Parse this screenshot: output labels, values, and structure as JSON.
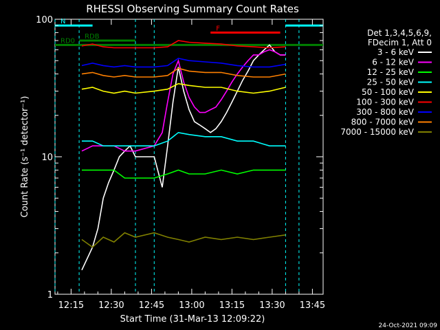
{
  "chart_data": {
    "type": "line",
    "title": "RHESSI Observing Summary Count Rates",
    "xlabel": "Start Time (31-Mar-13 12:09:22)",
    "ylabel": "Count Rate (s⁻¹ detector⁻¹)",
    "yscale": "log",
    "ylim": [
      1,
      100
    ],
    "y_ticks": [
      "1",
      "10",
      "100"
    ],
    "x_ticks": [
      "12:15",
      "12:30",
      "12:45",
      "13:00",
      "13:15",
      "13:30",
      "13:45"
    ],
    "x_range_minutes": [
      0,
      100
    ],
    "legend_header": [
      "Det 1,3,4,5,6,9,",
      "FDecim 1, Att 0"
    ],
    "legend_position": "right",
    "timestamp": "24-Oct-2021 09:09",
    "flags": [
      {
        "label": "N",
        "color": "#00ffff",
        "segments": [
          [
            0,
            14
          ],
          [
            86,
            100
          ]
        ],
        "level": 90
      },
      {
        "label": "F",
        "color": "#ff0000",
        "segments": [
          [
            58,
            84
          ]
        ],
        "level": 80
      },
      {
        "label": "RD0",
        "color": "#008000",
        "segments": [
          [
            0,
            100
          ]
        ],
        "level": 65
      },
      {
        "label": "RDB",
        "color": "#008000",
        "segments": [
          [
            9,
            30
          ]
        ],
        "level": 70
      }
    ],
    "gaps": [
      [
        0,
        9
      ],
      [
        30,
        37
      ],
      [
        86,
        91
      ]
    ],
    "series": [
      {
        "name": "3 - 6 keV",
        "color": "#ffffff",
        "points": [
          [
            10,
            1.5
          ],
          [
            14,
            2.2
          ],
          [
            16,
            3
          ],
          [
            18,
            5
          ],
          [
            20,
            6.5
          ],
          [
            22,
            8
          ],
          [
            24,
            10
          ],
          [
            26,
            11
          ],
          [
            28,
            12
          ],
          [
            30,
            10
          ],
          [
            37,
            10
          ],
          [
            40,
            6
          ],
          [
            42,
            12
          ],
          [
            44,
            25
          ],
          [
            46,
            45
          ],
          [
            48,
            30
          ],
          [
            50,
            22
          ],
          [
            52,
            18
          ],
          [
            54,
            17
          ],
          [
            56,
            16
          ],
          [
            58,
            15
          ],
          [
            60,
            16
          ],
          [
            62,
            18
          ],
          [
            64,
            21
          ],
          [
            66,
            25
          ],
          [
            68,
            30
          ],
          [
            70,
            36
          ],
          [
            72,
            42
          ],
          [
            74,
            50
          ],
          [
            76,
            55
          ],
          [
            78,
            60
          ],
          [
            80,
            65
          ],
          [
            82,
            58
          ],
          [
            84,
            55
          ],
          [
            86,
            55
          ]
        ]
      },
      {
        "name": "6 - 12 keV",
        "color": "#ff00ff",
        "points": [
          [
            10,
            11
          ],
          [
            14,
            12
          ],
          [
            18,
            12
          ],
          [
            22,
            12
          ],
          [
            26,
            11
          ],
          [
            30,
            11
          ],
          [
            37,
            12
          ],
          [
            40,
            15
          ],
          [
            42,
            25
          ],
          [
            44,
            40
          ],
          [
            46,
            50
          ],
          [
            48,
            35
          ],
          [
            50,
            27
          ],
          [
            52,
            23
          ],
          [
            54,
            21
          ],
          [
            56,
            21
          ],
          [
            58,
            22
          ],
          [
            60,
            23
          ],
          [
            62,
            26
          ],
          [
            64,
            30
          ],
          [
            66,
            35
          ],
          [
            68,
            40
          ],
          [
            70,
            45
          ],
          [
            72,
            50
          ],
          [
            74,
            55
          ],
          [
            76,
            55
          ],
          [
            78,
            58
          ],
          [
            80,
            60
          ],
          [
            82,
            58
          ],
          [
            84,
            55
          ],
          [
            86,
            55
          ]
        ]
      },
      {
        "name": "12 - 25 keV",
        "color": "#00ff00",
        "points": [
          [
            10,
            8
          ],
          [
            14,
            8
          ],
          [
            18,
            8
          ],
          [
            22,
            8
          ],
          [
            26,
            7
          ],
          [
            30,
            7
          ],
          [
            37,
            7
          ],
          [
            42,
            7.5
          ],
          [
            46,
            8
          ],
          [
            50,
            7.5
          ],
          [
            56,
            7.5
          ],
          [
            62,
            8
          ],
          [
            68,
            7.5
          ],
          [
            74,
            8
          ],
          [
            80,
            8
          ],
          [
            86,
            8
          ]
        ]
      },
      {
        "name": "25 - 50 keV",
        "color": "#00ffff",
        "points": [
          [
            10,
            13
          ],
          [
            14,
            13
          ],
          [
            18,
            12
          ],
          [
            22,
            12
          ],
          [
            26,
            12
          ],
          [
            30,
            12
          ],
          [
            37,
            12
          ],
          [
            42,
            13
          ],
          [
            46,
            15
          ],
          [
            50,
            14.5
          ],
          [
            56,
            14
          ],
          [
            62,
            14
          ],
          [
            68,
            13
          ],
          [
            74,
            13
          ],
          [
            80,
            12
          ],
          [
            86,
            12
          ]
        ]
      },
      {
        "name": "50 - 100 keV",
        "color": "#ffff00",
        "points": [
          [
            10,
            31
          ],
          [
            14,
            32
          ],
          [
            18,
            30
          ],
          [
            22,
            29
          ],
          [
            26,
            30
          ],
          [
            30,
            29
          ],
          [
            37,
            30
          ],
          [
            42,
            31
          ],
          [
            46,
            34
          ],
          [
            50,
            33
          ],
          [
            56,
            32
          ],
          [
            62,
            32
          ],
          [
            68,
            30
          ],
          [
            74,
            29
          ],
          [
            80,
            30
          ],
          [
            86,
            32
          ]
        ]
      },
      {
        "name": "100 - 300 keV",
        "color": "#ff0000",
        "points": [
          [
            10,
            64
          ],
          [
            14,
            66
          ],
          [
            18,
            63
          ],
          [
            22,
            62
          ],
          [
            26,
            62
          ],
          [
            30,
            62
          ],
          [
            37,
            62
          ],
          [
            42,
            63
          ],
          [
            46,
            70
          ],
          [
            50,
            68
          ],
          [
            56,
            67
          ],
          [
            62,
            66
          ],
          [
            68,
            64
          ],
          [
            74,
            63
          ],
          [
            80,
            62
          ],
          [
            86,
            63
          ]
        ]
      },
      {
        "name": "300 - 800 keV",
        "color": "#0000ff",
        "points": [
          [
            10,
            46
          ],
          [
            14,
            48
          ],
          [
            18,
            46
          ],
          [
            22,
            45
          ],
          [
            26,
            46
          ],
          [
            30,
            45
          ],
          [
            37,
            45
          ],
          [
            42,
            46
          ],
          [
            46,
            52
          ],
          [
            50,
            50
          ],
          [
            56,
            49
          ],
          [
            62,
            48
          ],
          [
            68,
            46
          ],
          [
            74,
            45
          ],
          [
            80,
            45
          ],
          [
            86,
            47
          ]
        ]
      },
      {
        "name": "800 - 7000 keV",
        "color": "#ff8000",
        "points": [
          [
            10,
            40
          ],
          [
            14,
            41
          ],
          [
            18,
            39
          ],
          [
            22,
            38
          ],
          [
            26,
            39
          ],
          [
            30,
            38
          ],
          [
            37,
            38
          ],
          [
            42,
            39
          ],
          [
            46,
            44
          ],
          [
            50,
            42
          ],
          [
            56,
            41
          ],
          [
            62,
            41
          ],
          [
            68,
            39
          ],
          [
            74,
            38
          ],
          [
            80,
            38
          ],
          [
            86,
            40
          ]
        ]
      },
      {
        "name": "7000 - 15000 keV",
        "color": "#808000",
        "points": [
          [
            10,
            2.5
          ],
          [
            14,
            2.2
          ],
          [
            18,
            2.6
          ],
          [
            22,
            2.4
          ],
          [
            26,
            2.8
          ],
          [
            30,
            2.6
          ],
          [
            37,
            2.8
          ],
          [
            42,
            2.6
          ],
          [
            46,
            2.5
          ],
          [
            50,
            2.4
          ],
          [
            56,
            2.6
          ],
          [
            62,
            2.5
          ],
          [
            68,
            2.6
          ],
          [
            74,
            2.5
          ],
          [
            80,
            2.6
          ],
          [
            86,
            2.7
          ]
        ]
      }
    ]
  }
}
